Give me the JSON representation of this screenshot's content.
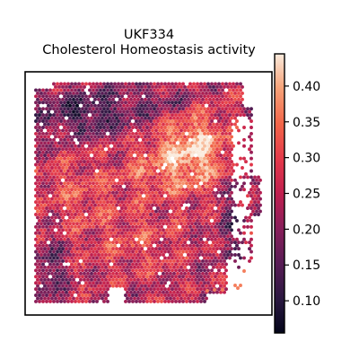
{
  "chart_data": {
    "type": "heatmap",
    "title": "UKF334",
    "subtitle": "Cholesterol Homeostasis activity",
    "xlabel": "",
    "ylabel": "",
    "grid": false,
    "colormap": "rocket",
    "colorbar": {
      "vmin": 0.055,
      "vmax": 0.445,
      "ticks": [
        0.1,
        0.15,
        0.2,
        0.25,
        0.3,
        0.35,
        0.4
      ],
      "tick_labels": [
        "0.10",
        "0.15",
        "0.20",
        "0.25",
        "0.30",
        "0.35",
        "0.40"
      ]
    },
    "colors": {
      "low": "#0c0a21",
      "mid": "#d8294a",
      "high": "#fbe6d3",
      "frame": "#000000"
    }
  }
}
